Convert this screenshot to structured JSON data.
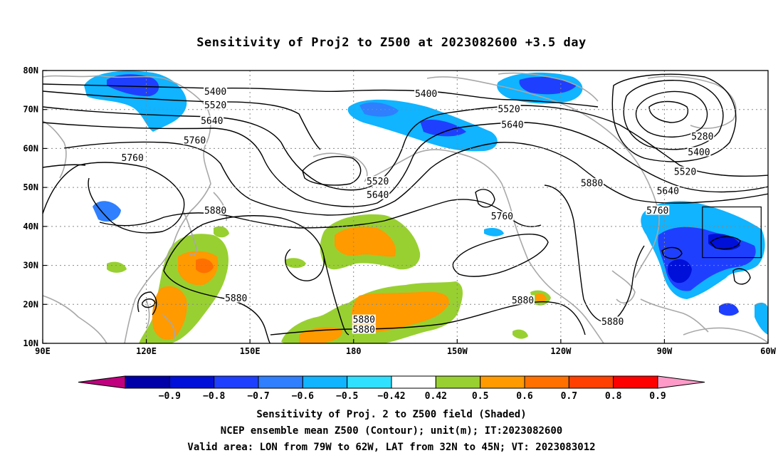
{
  "title": "Sensitivity of Proj2 to Z500 at 2023082600 +3.5 day",
  "map": {
    "lon_range": [
      90,
      300
    ],
    "lat_range": [
      10,
      80
    ],
    "x_ticks": [
      "90E",
      "120E",
      "150E",
      "180",
      "150W",
      "120W",
      "90W",
      "60W"
    ],
    "y_ticks": [
      "80N",
      "70N",
      "60N",
      "50N",
      "40N",
      "30N",
      "20N",
      "10N"
    ],
    "contour_labels": [
      {
        "text": "5400",
        "lon": 140,
        "lat": 74.5
      },
      {
        "text": "5520",
        "lon": 140,
        "lat": 71
      },
      {
        "text": "5640",
        "lon": 139,
        "lat": 67
      },
      {
        "text": "5760",
        "lon": 134,
        "lat": 62
      },
      {
        "text": "5760",
        "lon": 116,
        "lat": 57.5
      },
      {
        "text": "5880",
        "lon": 140,
        "lat": 44
      },
      {
        "text": "5880",
        "lon": 146,
        "lat": 21.5
      },
      {
        "text": "5400",
        "lon": 201,
        "lat": 74
      },
      {
        "text": "5520",
        "lon": 225,
        "lat": 70
      },
      {
        "text": "5640",
        "lon": 226,
        "lat": 66
      },
      {
        "text": "5520",
        "lon": 187,
        "lat": 51.5
      },
      {
        "text": "5640",
        "lon": 187,
        "lat": 48
      },
      {
        "text": "5760",
        "lon": 223,
        "lat": 42.5
      },
      {
        "text": "5880",
        "lon": 249,
        "lat": 51
      },
      {
        "text": "5880",
        "lon": 229,
        "lat": 21
      },
      {
        "text": "5880",
        "lon": 183,
        "lat": 16
      },
      {
        "text": "5880",
        "lon": 183,
        "lat": 13.5
      },
      {
        "text": "5880",
        "lon": 255,
        "lat": 15.5
      },
      {
        "text": "5280",
        "lon": 281,
        "lat": 63
      },
      {
        "text": "5400",
        "lon": 280,
        "lat": 59
      },
      {
        "text": "5520",
        "lon": 276,
        "lat": 54
      },
      {
        "text": "5640",
        "lon": 271,
        "lat": 49
      },
      {
        "text": "5760",
        "lon": 268,
        "lat": 44
      }
    ]
  },
  "colorbar": {
    "colors": [
      "#c0007f",
      "#0000a8",
      "#0010d8",
      "#1f3fff",
      "#2f7fff",
      "#10b4ff",
      "#30e0ff",
      "#ffffff",
      "#98d031",
      "#ff9a00",
      "#ff7000",
      "#ff4000",
      "#ff0000",
      "#ff9ac8"
    ],
    "labels": [
      "−0.9",
      "−0.8",
      "−0.7",
      "−0.6",
      "−0.5",
      "−0.42",
      "0.42",
      "0.5",
      "0.6",
      "0.7",
      "0.8",
      "0.9"
    ]
  },
  "captions": [
    "Sensitivity of Proj. 2 to Z500 field (Shaded)",
    "NCEP ensemble mean Z500 (Contour); unit(m); IT:2023082600",
    "Valid area: LON from 79W to 62W, LAT from 32N to 45N; VT: 2023083012"
  ],
  "valid_area": {
    "lon_min": 281,
    "lon_max": 298,
    "lat_min": 32,
    "lat_max": 45
  }
}
